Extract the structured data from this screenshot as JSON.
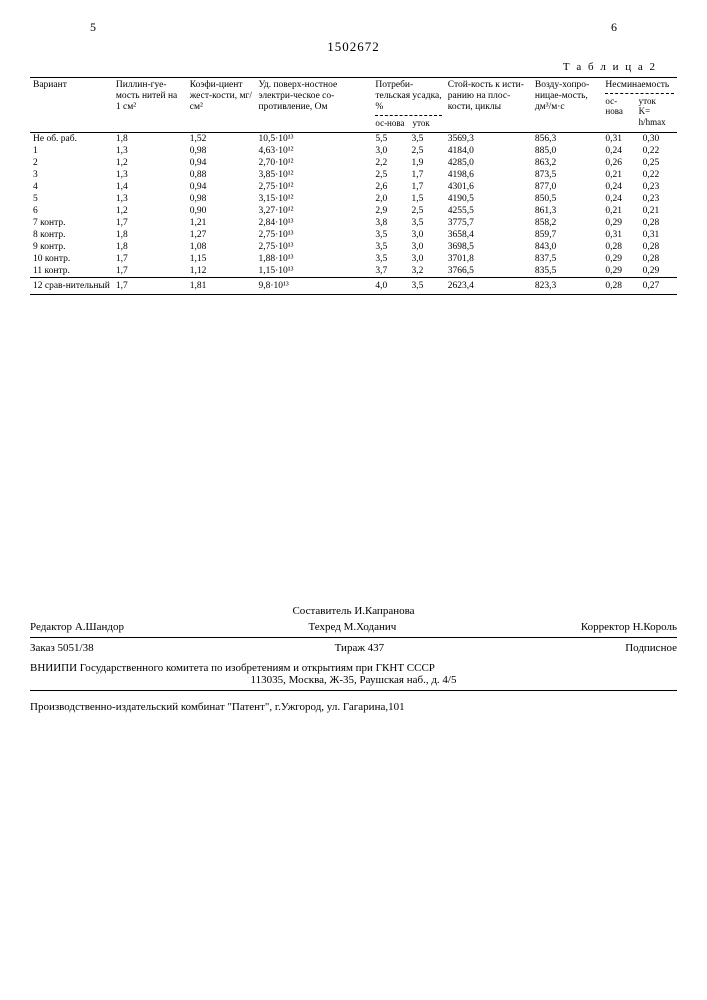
{
  "page_left": "5",
  "doc_number": "1502672",
  "page_right": "6",
  "table_label": "Т а б л и ц а  2",
  "headers": {
    "c1": "Вариант",
    "c2": "Пиллин-гуе-мость нитей на 1 см²",
    "c3": "Коэфи-циент жест-кости, мг/см²",
    "c4": "Уд. поверх-ностное электри-ческое со-противление, Ом",
    "c5": "Потреби-тельская усадка, %",
    "c5a": "ос-нова",
    "c5b": "уток",
    "c6": "Стой-кость к исти-ранию на плос-кости, циклы",
    "c7": "Возду-хопро-ницае-мость, дм³/м·с",
    "c8": "Несминаемость",
    "c8a": "ос-нова",
    "c8b": "уток",
    "c8c": "K= h/hmax"
  },
  "rows": [
    {
      "v": "Не об. раб.",
      "a": "1,8",
      "b": "1,52",
      "c": "10,5·10¹³",
      "d": "5,5",
      "e": "3,5",
      "f": "3569,3",
      "g": "856,3",
      "h": "0,31",
      "i": "0,30"
    },
    {
      "v": "1",
      "a": "1,3",
      "b": "0,98",
      "c": "4,63·10¹²",
      "d": "3,0",
      "e": "2,5",
      "f": "4184,0",
      "g": "885,0",
      "h": "0,24",
      "i": "0,22"
    },
    {
      "v": "2",
      "a": "1,2",
      "b": "0,94",
      "c": "2,70·10¹²",
      "d": "2,2",
      "e": "1,9",
      "f": "4285,0",
      "g": "863,2",
      "h": "0,26",
      "i": "0,25"
    },
    {
      "v": "3",
      "a": "1,3",
      "b": "0,88",
      "c": "3,85·10¹²",
      "d": "2,5",
      "e": "1,7",
      "f": "4198,6",
      "g": "873,5",
      "h": "0,21",
      "i": "0,22"
    },
    {
      "v": "4",
      "a": "1,4",
      "b": "0,94",
      "c": "2,75·10¹²",
      "d": "2,6",
      "e": "1,7",
      "f": "4301,6",
      "g": "877,0",
      "h": "0,24",
      "i": "0,23"
    },
    {
      "v": "5",
      "a": "1,3",
      "b": "0,98",
      "c": "3,15·10¹²",
      "d": "2,0",
      "e": "1,5",
      "f": "4190,5",
      "g": "850,5",
      "h": "0,24",
      "i": "0,23"
    },
    {
      "v": "6",
      "a": "1,2",
      "b": "0,90",
      "c": "3,27·10¹²",
      "d": "2,9",
      "e": "2,5",
      "f": "4255,5",
      "g": "861,3",
      "h": "0,21",
      "i": "0,21"
    },
    {
      "v": "7 контр.",
      "a": "1,7",
      "b": "1,21",
      "c": "2,84·10¹³",
      "d": "3,8",
      "e": "3,5",
      "f": "3775,7",
      "g": "858,2",
      "h": "0,29",
      "i": "0,28"
    },
    {
      "v": "8 контр.",
      "a": "1,8",
      "b": "1,27",
      "c": "2,75·10¹³",
      "d": "3,5",
      "e": "3,0",
      "f": "3658,4",
      "g": "859,7",
      "h": "0,31",
      "i": "0,31"
    },
    {
      "v": "9 контр.",
      "a": "1,8",
      "b": "1,08",
      "c": "2,75·10¹³",
      "d": "3,5",
      "e": "3,0",
      "f": "3698,5",
      "g": "843,0",
      "h": "0,28",
      "i": "0,28"
    },
    {
      "v": "10 контр.",
      "a": "1,7",
      "b": "1,15",
      "c": "1,88·10¹³",
      "d": "3,5",
      "e": "3,0",
      "f": "3701,8",
      "g": "837,5",
      "h": "0,29",
      "i": "0,28"
    },
    {
      "v": "11 контр.",
      "a": "1,7",
      "b": "1,12",
      "c": "1,15·10¹³",
      "d": "3,7",
      "e": "3,2",
      "f": "3766,5",
      "g": "835,5",
      "h": "0,29",
      "i": "0,29"
    },
    {
      "v": "12 срав-нительный",
      "a": "1,7",
      "b": "1,81",
      "c": "9,8·10¹³",
      "d": "4,0",
      "e": "3,5",
      "f": "2623,4",
      "g": "823,3",
      "h": "0,28",
      "i": "0,27"
    }
  ],
  "credits": {
    "compiler_label": "Составитель",
    "compiler": "И.Капранова",
    "editor_label": "Редактор",
    "editor": "А.Шандор",
    "techred_label": "Техред",
    "techred": "М.Ходанич",
    "corrector_label": "Корректор",
    "corrector": "Н.Король",
    "order": "Заказ 5051/38",
    "tirazh": "Тираж 437",
    "podpisnoe": "Подписное",
    "org": "ВНИИПИ Государственного комитета по изобретениям и открытиям при ГКНТ СССР",
    "org_addr": "113035, Москва, Ж-35, Раушская наб., д. 4/5",
    "footer": "Производственно-издательский комбинат \"Патент\", г.Ужгород, ул. Гагарина,101"
  }
}
